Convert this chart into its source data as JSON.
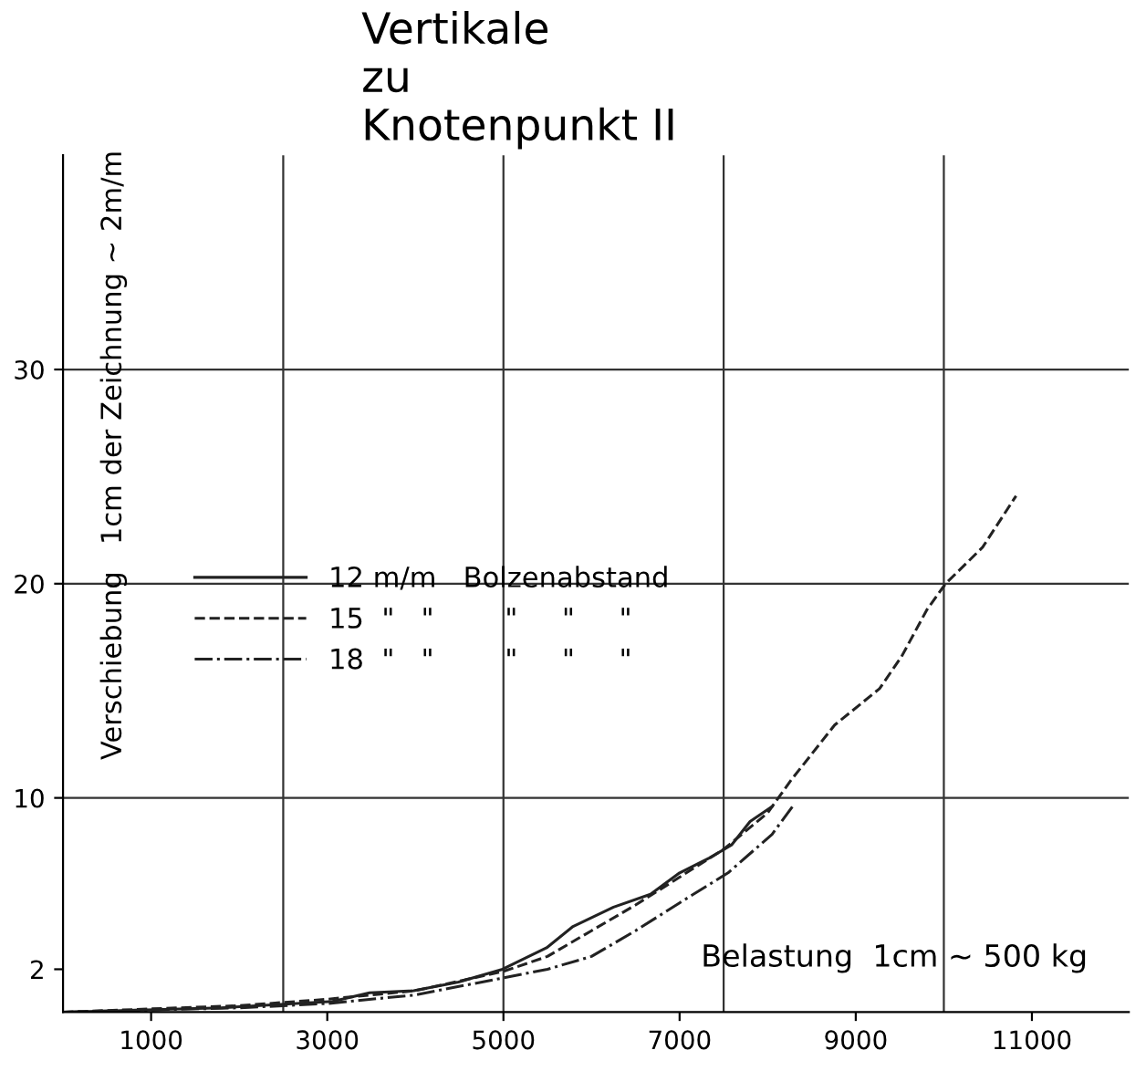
{
  "chart_data": {
    "type": "line",
    "title": "Vertikale\nzu\nKnotenpunkt II",
    "xlabel": "Belastung  1cm ~ 500 kg",
    "ylabel": "Verschiebung   1cm der Zeichnung ~ 2m/m",
    "xlim": [
      0,
      12100
    ],
    "ylim": [
      0,
      40
    ],
    "xticks": [
      1000,
      3000,
      5000,
      7000,
      9000,
      11000
    ],
    "yticks": [
      2,
      10,
      20,
      30
    ],
    "grid": false,
    "legend": "left",
    "ref_lines": [
      {
        "axis": "y",
        "value": 10
      },
      {
        "axis": "y",
        "value": 20
      },
      {
        "axis": "y",
        "value": 30
      },
      {
        "axis": "x",
        "value": 2500
      },
      {
        "axis": "x",
        "value": 5000
      },
      {
        "axis": "x",
        "value": 7500
      },
      {
        "axis": "x",
        "value": 10000
      }
    ],
    "series": [
      {
        "name": "12 m/m   Bolzenabstand",
        "color": "#222222",
        "line_style": "solid",
        "x": [
          0,
          1800,
          3060,
          3480,
          3980,
          4490,
          4990,
          5490,
          5790,
          6250,
          6670,
          7000,
          7340,
          7590,
          7800,
          8050
        ],
        "values": [
          0,
          0.2,
          0.5,
          0.9,
          1.0,
          1.4,
          2.0,
          3.0,
          4.0,
          4.9,
          5.5,
          6.5,
          7.2,
          7.8,
          8.9,
          9.6
        ]
      },
      {
        "name": "15  \"   \"        \"     \"     \"",
        "color": "#222222",
        "line_style": "dashed",
        "x": [
          0,
          2000,
          3000,
          4000,
          5000,
          5500,
          6000,
          6500,
          7000,
          7500,
          8000,
          8260,
          8760,
          9270,
          9520,
          9810,
          10020,
          10440,
          10820
        ],
        "values": [
          0,
          0.3,
          0.6,
          1.0,
          1.9,
          2.6,
          3.8,
          5.0,
          6.3,
          7.6,
          9.3,
          10.8,
          13.4,
          15.1,
          16.6,
          18.8,
          20.0,
          21.7,
          24.1
        ]
      },
      {
        "name": "18  \"   \"        \"     \"     \"",
        "color": "#222222",
        "line_style": "dashdot",
        "x": [
          0,
          2000,
          3000,
          4000,
          5000,
          5500,
          6000,
          6500,
          7000,
          7550,
          8050,
          8300
        ],
        "values": [
          0,
          0.2,
          0.4,
          0.8,
          1.6,
          2.0,
          2.6,
          3.8,
          5.1,
          6.5,
          8.3,
          9.7
        ]
      }
    ]
  }
}
